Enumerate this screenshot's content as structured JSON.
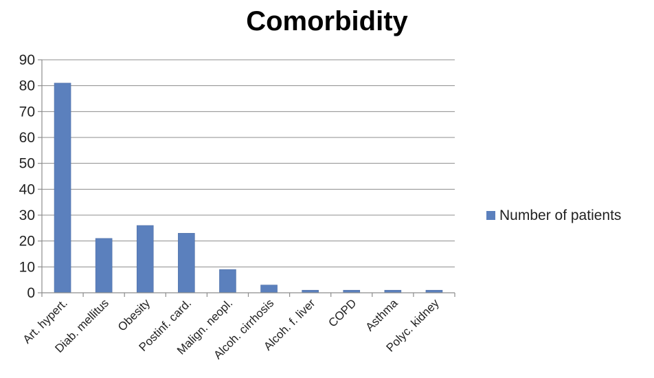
{
  "chart_data": {
    "type": "bar",
    "title": "Comorbidity",
    "xlabel": "",
    "ylabel": "",
    "ylim": [
      0,
      90
    ],
    "y_ticks": [
      0,
      10,
      20,
      30,
      40,
      50,
      60,
      70,
      80,
      90
    ],
    "grid": true,
    "legend_position": "right",
    "categories": [
      "Art. hypert.",
      "Diab. mellitus",
      "Obesity",
      "Postinf. card.",
      "Malign. neopl.",
      "Alcoh. cirrhosis",
      "Alcoh. f. liver",
      "COPD",
      "Asthma",
      "Polyc. kidney"
    ],
    "series": [
      {
        "name": "Number of patients",
        "color": "#5b80bd",
        "values": [
          81,
          21,
          26,
          23,
          9,
          3,
          1,
          1,
          1,
          1
        ]
      }
    ]
  }
}
